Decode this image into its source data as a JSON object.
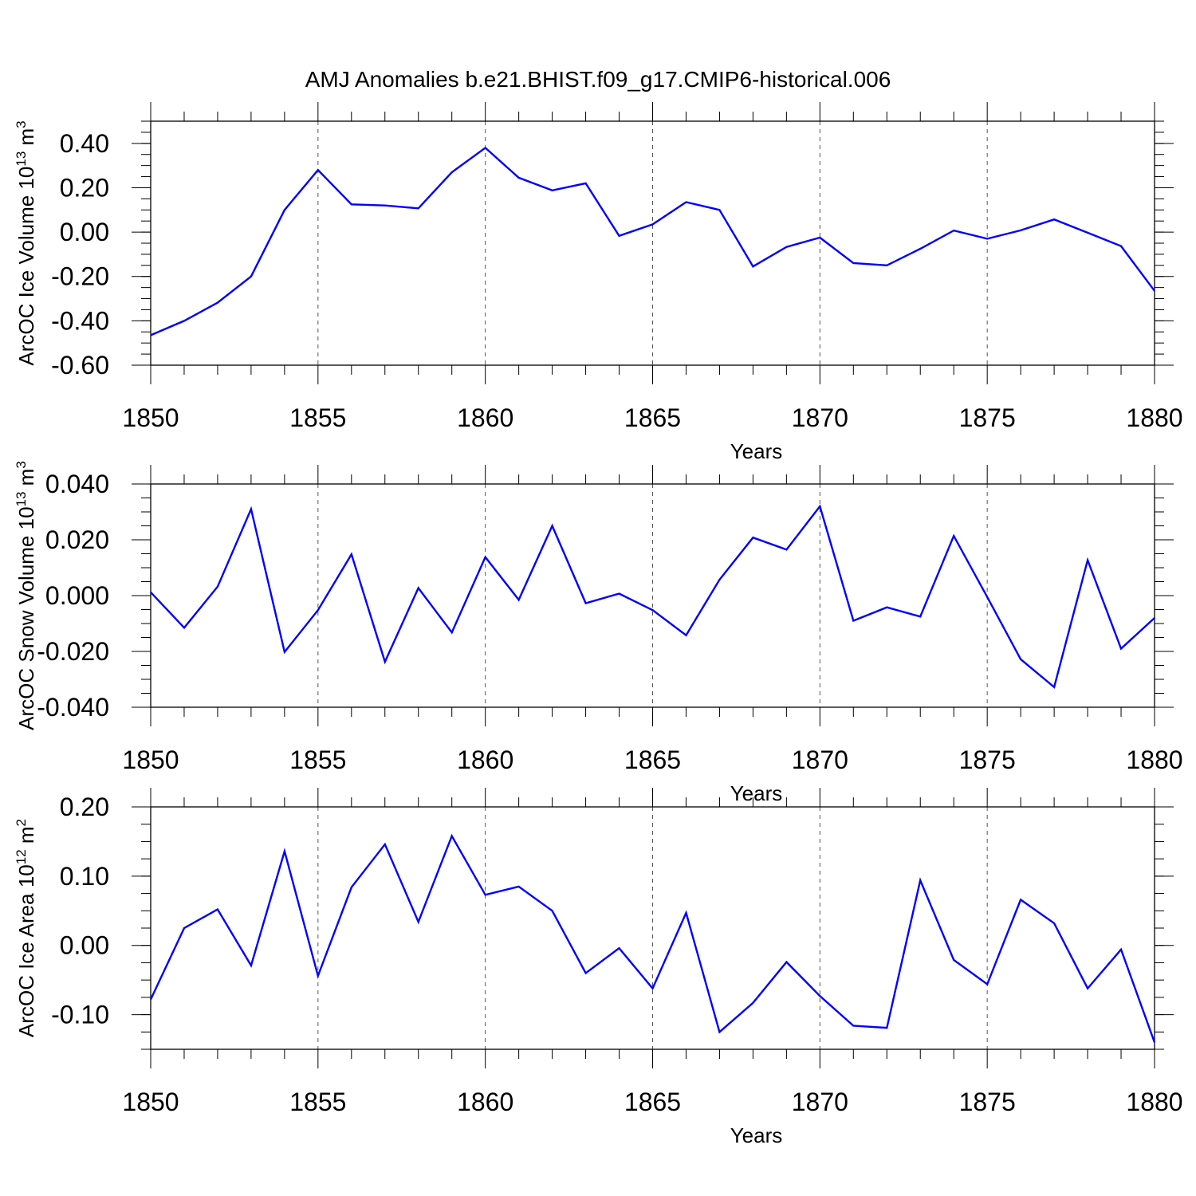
{
  "title": "AMJ Anomalies b.e21.BHIST.f09_g17.CMIP6-historical.006",
  "chart_data": [
    {
      "type": "line",
      "ylabel_base": "ArcOC Ice Volume 10",
      "ylabel_exp": "13",
      "ylabel_unit": " m",
      "ylabel_unit_exp": "3",
      "xlabel": "Years",
      "xlim": [
        1850,
        1880
      ],
      "ylim": [
        -0.6,
        0.5
      ],
      "yticks": [
        -0.6,
        -0.4,
        -0.2,
        0.0,
        0.2,
        0.4
      ],
      "ytick_labels": [
        "-0.60",
        "-0.40",
        "-0.20",
        "0.00",
        "0.20",
        "0.40"
      ],
      "yminor_step": 0.05,
      "series": [
        {
          "name": "Ice Volume",
          "color": "#0000ff",
          "x": [
            1850,
            1851,
            1852,
            1853,
            1854,
            1855,
            1856,
            1857,
            1858,
            1859,
            1860,
            1861,
            1862,
            1863,
            1864,
            1865,
            1866,
            1867,
            1868,
            1869,
            1870,
            1871,
            1872,
            1873,
            1874,
            1875,
            1876,
            1877,
            1878,
            1879,
            1880
          ],
          "values": [
            -0.465,
            -0.4,
            -0.318,
            -0.2,
            0.1,
            0.28,
            0.125,
            0.12,
            0.107,
            0.27,
            0.38,
            0.245,
            0.188,
            0.22,
            -0.017,
            0.035,
            0.135,
            0.1,
            -0.155,
            -0.067,
            -0.025,
            -0.14,
            -0.15,
            -0.075,
            0.007,
            -0.03,
            0.008,
            0.057,
            -0.003,
            -0.063,
            -0.265
          ]
        }
      ]
    },
    {
      "type": "line",
      "ylabel_base": "ArcOC Snow Volume 10",
      "ylabel_exp": "13",
      "ylabel_unit": " m",
      "ylabel_unit_exp": "3",
      "xlabel": "Years",
      "xlim": [
        1850,
        1880
      ],
      "ylim": [
        -0.04,
        0.04
      ],
      "yticks": [
        -0.04,
        -0.02,
        0.0,
        0.02,
        0.04
      ],
      "ytick_labels": [
        "-0.040",
        "-0.020",
        "0.000",
        "0.020",
        "0.040"
      ],
      "yminor_step": 0.005,
      "series": [
        {
          "name": "Snow Volume",
          "color": "#0000ff",
          "x": [
            1850,
            1851,
            1852,
            1853,
            1854,
            1855,
            1856,
            1857,
            1858,
            1859,
            1860,
            1861,
            1862,
            1863,
            1864,
            1865,
            1866,
            1867,
            1868,
            1869,
            1870,
            1871,
            1872,
            1873,
            1874,
            1875,
            1876,
            1877,
            1878,
            1879,
            1880
          ],
          "values": [
            0.0012,
            -0.0115,
            0.0032,
            0.031,
            -0.0202,
            -0.0052,
            0.0148,
            -0.0237,
            0.0027,
            -0.0132,
            0.0138,
            -0.0015,
            0.025,
            -0.0027,
            0.0007,
            -0.0052,
            -0.0142,
            0.0057,
            0.0208,
            0.0165,
            0.032,
            -0.009,
            -0.0042,
            -0.0075,
            0.0214,
            -0.0005,
            -0.0228,
            -0.0328,
            0.0127,
            -0.019,
            -0.008
          ]
        }
      ]
    },
    {
      "type": "line",
      "ylabel_base": "ArcOC Ice Area 10",
      "ylabel_exp": "12",
      "ylabel_unit": " m",
      "ylabel_unit_exp": "2",
      "xlabel": "Years",
      "xlim": [
        1850,
        1880
      ],
      "ylim": [
        -0.15,
        0.2
      ],
      "yticks": [
        -0.1,
        0.0,
        0.1,
        0.2
      ],
      "ytick_labels": [
        "-0.10",
        "0.00",
        "0.10",
        "0.20"
      ],
      "yminor_step": 0.025,
      "series": [
        {
          "name": "Ice Area",
          "color": "#0000ff",
          "x": [
            1850,
            1851,
            1852,
            1853,
            1854,
            1855,
            1856,
            1857,
            1858,
            1859,
            1860,
            1861,
            1862,
            1863,
            1864,
            1865,
            1866,
            1867,
            1868,
            1869,
            1870,
            1871,
            1872,
            1873,
            1874,
            1875,
            1876,
            1877,
            1878,
            1879,
            1880
          ],
          "values": [
            -0.078,
            0.025,
            0.052,
            -0.029,
            0.136,
            -0.044,
            0.084,
            0.146,
            0.034,
            0.158,
            0.073,
            0.085,
            0.05,
            -0.04,
            -0.004,
            -0.062,
            0.047,
            -0.125,
            -0.083,
            -0.024,
            -0.073,
            -0.116,
            -0.119,
            0.094,
            -0.021,
            -0.056,
            0.066,
            0.032,
            -0.062,
            -0.006,
            -0.14
          ]
        }
      ]
    }
  ],
  "xticks": [
    1850,
    1855,
    1860,
    1865,
    1870,
    1875,
    1880
  ]
}
